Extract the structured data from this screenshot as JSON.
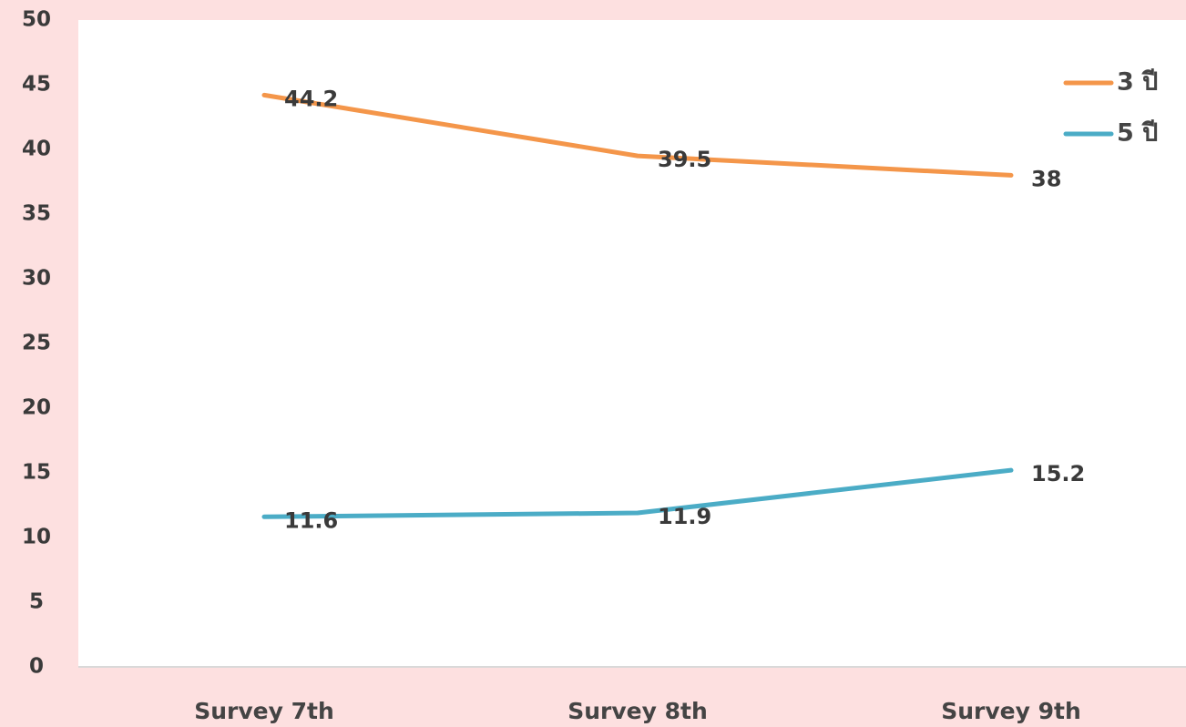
{
  "chart_data": {
    "type": "line",
    "categories": [
      "Survey 7th",
      "Survey 8th",
      "Survey 9th"
    ],
    "series": [
      {
        "name": "3 ปี",
        "color": "#f4964a",
        "values": [
          44.2,
          39.5,
          38
        ]
      },
      {
        "name": "5 ปี",
        "color": "#4bacc6",
        "values": [
          11.6,
          11.9,
          15.2
        ]
      }
    ],
    "ylim": [
      0,
      50
    ],
    "yticks": [
      0,
      5,
      10,
      15,
      20,
      25,
      30,
      35,
      40,
      45,
      50
    ],
    "grid": false,
    "legend": "upper right",
    "data_labels": true
  }
}
